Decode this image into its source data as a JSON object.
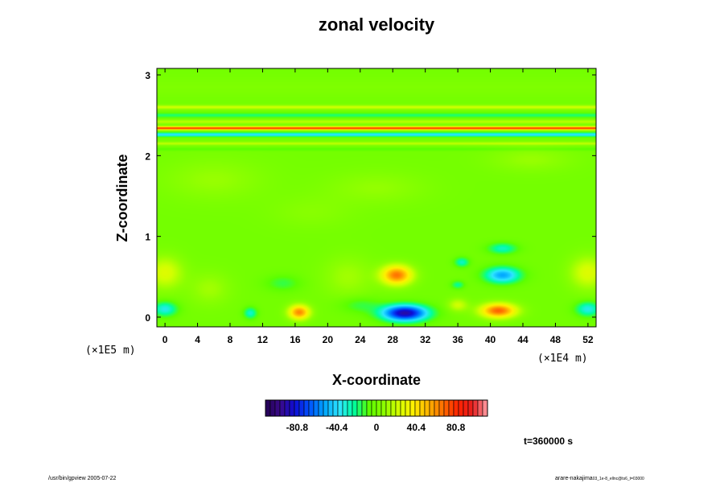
{
  "chart_data": {
    "type": "heatmap",
    "title": "zonal velocity",
    "xlabel": "X-coordinate",
    "ylabel": "Z-coordinate",
    "x_ticks": [
      "0",
      "4",
      "8",
      "12",
      "16",
      "20",
      "24",
      "28",
      "32",
      "36",
      "40",
      "44",
      "48",
      "52"
    ],
    "y_ticks": [
      "0",
      "1",
      "2",
      "3"
    ],
    "x_scale_note": "(×1E4 m)",
    "y_scale_note": "(×1E5 m)",
    "xlim": [
      -1,
      53
    ],
    "ylim": [
      -0.12,
      3.08
    ],
    "colorbar": {
      "ticks": [
        "-80.8",
        "-40.4",
        "0",
        "40.4",
        "80.8"
      ],
      "tick_values": [
        -80.8,
        -40.4,
        0,
        40.4,
        80.8
      ],
      "range": [
        -113,
        113
      ]
    },
    "background_value": 0,
    "features": [
      {
        "x": 0,
        "z": 0.1,
        "value": -35,
        "sx": 1.5,
        "sz": 0.09
      },
      {
        "x": 52,
        "z": 0.1,
        "value": -35,
        "sx": 1.5,
        "sz": 0.09
      },
      {
        "x": 10.5,
        "z": 0.05,
        "value": -30,
        "sx": 0.8,
        "sz": 0.07
      },
      {
        "x": 16.5,
        "z": 0.06,
        "value": 62,
        "sx": 1.3,
        "sz": 0.09
      },
      {
        "x": 29.5,
        "z": 0.05,
        "value": -92,
        "sx": 2.8,
        "sz": 0.1
      },
      {
        "x": 41,
        "z": 0.08,
        "value": 70,
        "sx": 2.2,
        "sz": 0.09
      },
      {
        "x": 28.5,
        "z": 0.52,
        "value": 66,
        "sx": 1.9,
        "sz": 0.12
      },
      {
        "x": 41.5,
        "z": 0.52,
        "value": -52,
        "sx": 2.2,
        "sz": 0.1
      },
      {
        "x": 41.5,
        "z": 0.85,
        "value": -28,
        "sx": 1.8,
        "sz": 0.07
      },
      {
        "x": 36.5,
        "z": 0.68,
        "value": -28,
        "sx": 0.9,
        "sz": 0.06
      },
      {
        "x": 36,
        "z": 0.4,
        "value": -22,
        "sx": 0.8,
        "sz": 0.05
      },
      {
        "x": 0,
        "z": 0.55,
        "value": 26,
        "sx": 2.2,
        "sz": 0.2
      },
      {
        "x": 52,
        "z": 0.55,
        "value": 26,
        "sx": 2.2,
        "sz": 0.2
      },
      {
        "x": 5.5,
        "z": 0.35,
        "value": 12,
        "sx": 2.5,
        "sz": 0.2
      },
      {
        "x": 14.5,
        "z": 0.42,
        "value": -14,
        "sx": 2.2,
        "sz": 0.1
      },
      {
        "x": 22.5,
        "z": 0.5,
        "value": 12,
        "sx": 3,
        "sz": 0.25
      },
      {
        "x": 24,
        "z": 0.15,
        "value": -14,
        "sx": 2.5,
        "sz": 0.1
      },
      {
        "x": 36,
        "z": 0.15,
        "value": 22,
        "sx": 1.2,
        "sz": 0.08
      },
      {
        "x": 6,
        "z": 1.7,
        "value": 10,
        "sx": 6,
        "sz": 0.25
      },
      {
        "x": 26,
        "z": 1.6,
        "value": 9,
        "sx": 6,
        "sz": 0.2
      },
      {
        "x": 45,
        "z": 1.95,
        "value": 10,
        "sx": 5,
        "sz": 0.15
      },
      {
        "x": 18,
        "z": 1.3,
        "value": 6,
        "sx": 5,
        "sz": 0.2
      }
    ],
    "bands": [
      {
        "z": 2.85,
        "value": 3,
        "sz": 0.12
      },
      {
        "z": 2.6,
        "value": 22,
        "sz": 0.025
      },
      {
        "z": 2.5,
        "value": -18,
        "sz": 0.03
      },
      {
        "z": 2.42,
        "value": 16,
        "sz": 0.025
      },
      {
        "z": 2.34,
        "value": 80,
        "sz": 0.02
      },
      {
        "z": 2.26,
        "value": -40,
        "sz": 0.025
      },
      {
        "z": 2.15,
        "value": 18,
        "sz": 0.02
      },
      {
        "z": 2.08,
        "value": -8,
        "sz": 0.02
      }
    ],
    "time_label": "t=360000 s"
  },
  "footer": {
    "left": "/usr/bin/gpview 2005-07-22",
    "right_main": "arare-nakajima",
    "right_sub": "03_1e-8_ellnc@ts6_t=03000"
  },
  "colors": {
    "colormap": [
      "#230052",
      "#3a0a8a",
      "#0d0dd6",
      "#0055ff",
      "#00a6ff",
      "#2ee6ff",
      "#00ff9c",
      "#5cff00",
      "#8cff00",
      "#d3ff00",
      "#fff000",
      "#ffb400",
      "#ff6e00",
      "#ff2300",
      "#e61e1e",
      "#ffa0a8"
    ]
  }
}
